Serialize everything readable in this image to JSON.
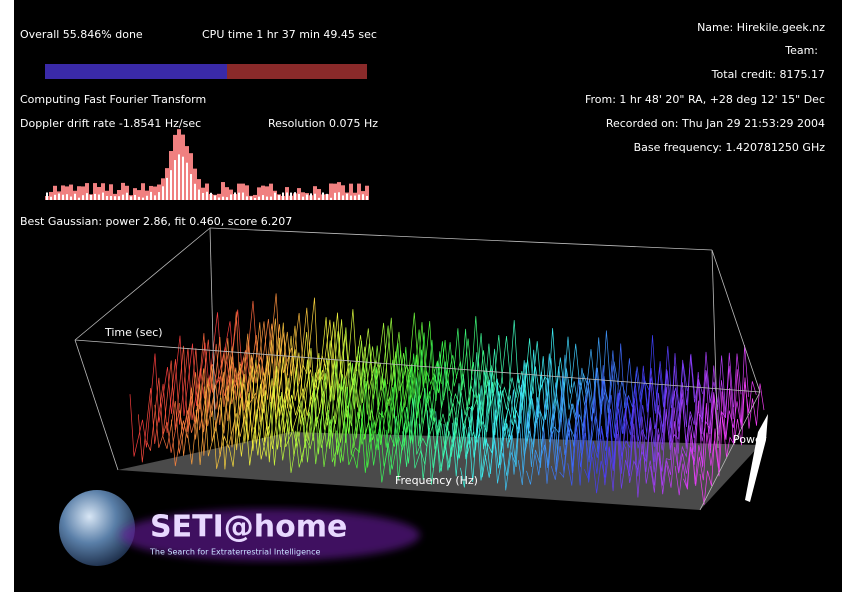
{
  "status": {
    "progress": "Overall 55.846% done",
    "cpu_time": "CPU time 1 hr 37 min 49.45 sec",
    "stage": "Computing Fast Fourier Transform",
    "doppler": "Doppler drift rate -1.8541 Hz/sec",
    "resolution": "Resolution 0.075 Hz",
    "gaussian": "Best Gaussian: power 2.86, fit 0.460, score 6.207"
  },
  "info": {
    "name": "Name: Hirekile.geek.nz",
    "team": "Team:",
    "credit": "Total credit: 8175.17",
    "from": "From: 1 hr 48' 20\" RA, +28 deg 12' 15\" Dec",
    "recorded": "Recorded on: Thu Jan 29 21:53:29 2004",
    "base_frequency": "Base frequency: 1.420781250 GHz"
  },
  "plot": {
    "time_axis": "Time (sec)",
    "frequency_axis": "Frequency (Hz)",
    "power_axis": "Power"
  },
  "logo": {
    "title": "SETI@home",
    "subtitle": "The Search for Extraterrestrial Intelligence"
  }
}
